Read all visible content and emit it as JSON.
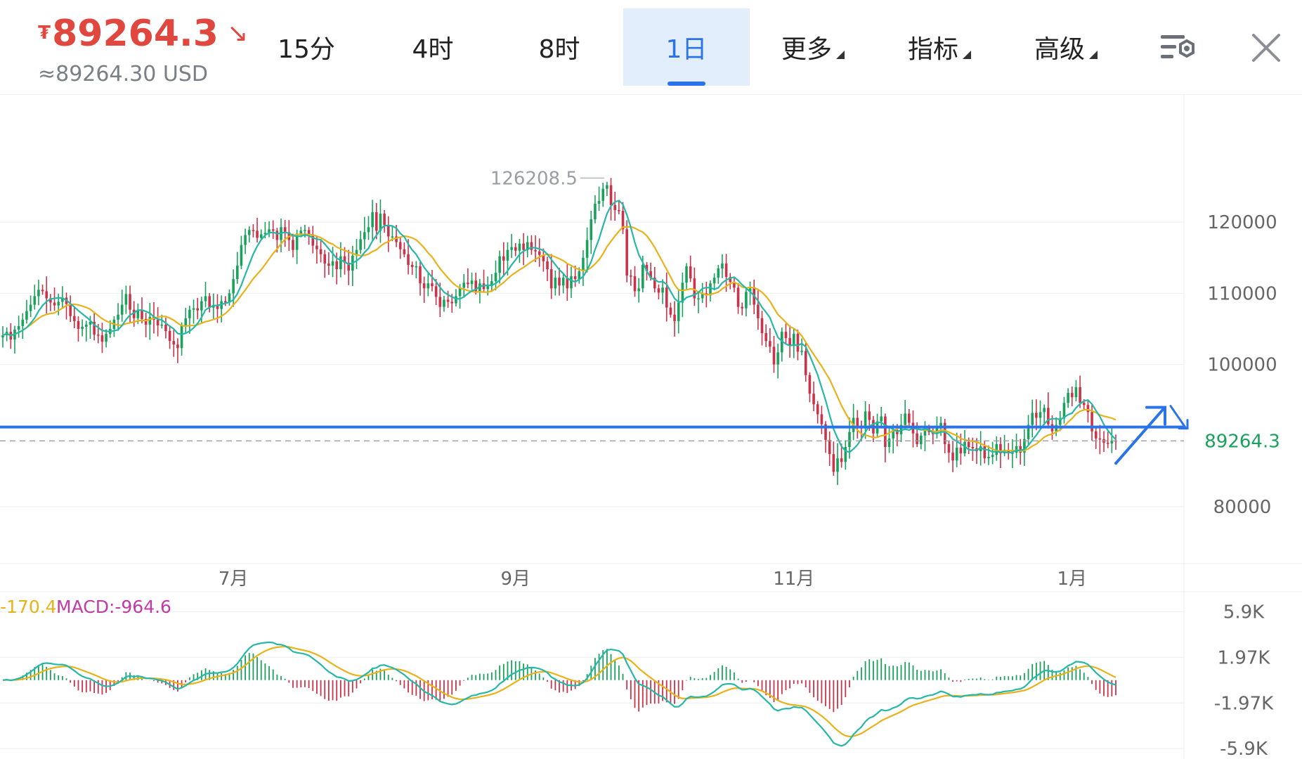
{
  "header": {
    "currency_symbol": "₮",
    "price": "89264.3",
    "trend_arrow": "↘",
    "usd_price": "≈89264.30 USD",
    "tabs": [
      {
        "label": "15分",
        "active": false,
        "dropdown": false
      },
      {
        "label": "4时",
        "active": false,
        "dropdown": false
      },
      {
        "label": "8时",
        "active": false,
        "dropdown": false
      },
      {
        "label": "1日",
        "active": true,
        "dropdown": false
      },
      {
        "label": "更多",
        "active": false,
        "dropdown": true
      },
      {
        "label": "指标",
        "active": false,
        "dropdown": true
      },
      {
        "label": "高级",
        "active": false,
        "dropdown": true
      }
    ],
    "icons": [
      "chart-settings-icon",
      "close-icon"
    ]
  },
  "colors": {
    "up": "#1aa25d",
    "down": "#c9344a",
    "ma_short": "#27b7a8",
    "ma_long": "#e9b21b",
    "price_line": "#2a73e8",
    "current_price_label": "#1aa25d",
    "price_red": "#e0473f",
    "macd_label": "#c13aa8",
    "dif_label": "#e9b21b"
  },
  "chart_data": [
    {
      "type": "candlestick",
      "high_label": "126208.5",
      "current_price": 89264.3,
      "current_price_label": "89264.3",
      "y_ticks": [
        120000,
        110000,
        100000,
        80000
      ],
      "y_tick_labels": [
        "120000",
        "110000",
        "100000",
        "80000"
      ],
      "ylim": [
        72000,
        138000
      ],
      "x_labels": [
        "7月",
        "9月",
        "11月",
        "1月"
      ],
      "horizontal_line": 91200,
      "annotation": "arrow up then down (projection)",
      "closes": [
        104100,
        104600,
        103500,
        104900,
        105400,
        106300,
        107500,
        108400,
        109600,
        110500,
        110300,
        109300,
        108700,
        108300,
        108800,
        109400,
        108500,
        106800,
        106100,
        105000,
        105300,
        105600,
        106000,
        104200,
        104100,
        103200,
        104300,
        105000,
        106300,
        107000,
        108400,
        109900,
        107700,
        106500,
        107700,
        106400,
        105600,
        106700,
        106300,
        105500,
        105600,
        104700,
        103300,
        102800,
        102300,
        105500,
        106500,
        107700,
        107900,
        107600,
        108900,
        109600,
        108000,
        108300,
        107800,
        108900,
        108700,
        110000,
        112000,
        113900,
        116800,
        118200,
        118900,
        118800,
        117800,
        118300,
        118500,
        119000,
        118800,
        117500,
        119300,
        118600,
        117500,
        116100,
        118400,
        118800,
        118900,
        118300,
        116700,
        116200,
        115500,
        114200,
        113900,
        114500,
        113400,
        115200,
        114300,
        113200,
        115300,
        116100,
        117600,
        118600,
        119300,
        121400,
        118800,
        121200,
        119600,
        118000,
        118000,
        117200,
        116200,
        115500,
        114000,
        113700,
        113800,
        111400,
        110700,
        111400,
        111000,
        109500,
        108100,
        109100,
        108800,
        108600,
        109600,
        110800,
        111500,
        111300,
        111800,
        110300,
        111400,
        110600,
        111000,
        111700,
        112900,
        115200,
        114600,
        116100,
        116500,
        116000,
        117000,
        116100,
        117200,
        116100,
        115900,
        115400,
        114500,
        113400,
        110700,
        112200,
        111100,
        112200,
        110700,
        112400,
        112000,
        113100,
        115000,
        117500,
        120400,
        122600,
        123000,
        124700,
        125200,
        122400,
        121700,
        121600,
        119000,
        112500,
        112400,
        110300,
        110700,
        114000,
        113100,
        112200,
        110700,
        110100,
        110800,
        108000,
        107000,
        106100,
        108700,
        111500,
        113800,
        112100,
        109300,
        109300,
        110000,
        109700,
        111400,
        112200,
        113500,
        114200,
        112300,
        111600,
        110800,
        108100,
        107900,
        110200,
        110700,
        108400,
        106500,
        104400,
        103300,
        102500,
        100000,
        101700,
        104600,
        103700,
        102600,
        104300,
        101800,
        101900,
        98500,
        95900,
        94400,
        93000,
        91600,
        89400,
        87400,
        84900,
        86800,
        86300,
        88400,
        90500,
        92500,
        91400,
        91000,
        93400,
        92200,
        90300,
        92000,
        92700,
        88400,
        89600,
        90800,
        90200,
        91500,
        93100,
        91800,
        90300,
        88800,
        90000,
        91100,
        90500,
        90200,
        91200,
        91800,
        88800,
        87600,
        86500,
        88300,
        87500,
        89100,
        88400,
        88200,
        87800,
        88500,
        86800,
        87000,
        87300,
        88800,
        87500,
        88000,
        87600,
        87600,
        88500,
        87600,
        89500,
        91500,
        93200,
        92500,
        93300,
        93900,
        91600,
        90600,
        91500,
        92400,
        94600,
        96000,
        95400,
        96800,
        94600,
        94300,
        93300,
        90600,
        89600,
        89500,
        89000,
        88900,
        89300,
        89264
      ]
    },
    {
      "type": "macd",
      "label_prefix": "-170.4",
      "macd_label": "MACD:-964.6",
      "y_tick_labels": [
        "5.9K",
        "1.97K",
        "-1.97K",
        "-5.9K"
      ],
      "y_ticks": [
        5900,
        1970,
        -1970,
        -5900
      ],
      "ylim": [
        -6800,
        7500
      ]
    }
  ]
}
